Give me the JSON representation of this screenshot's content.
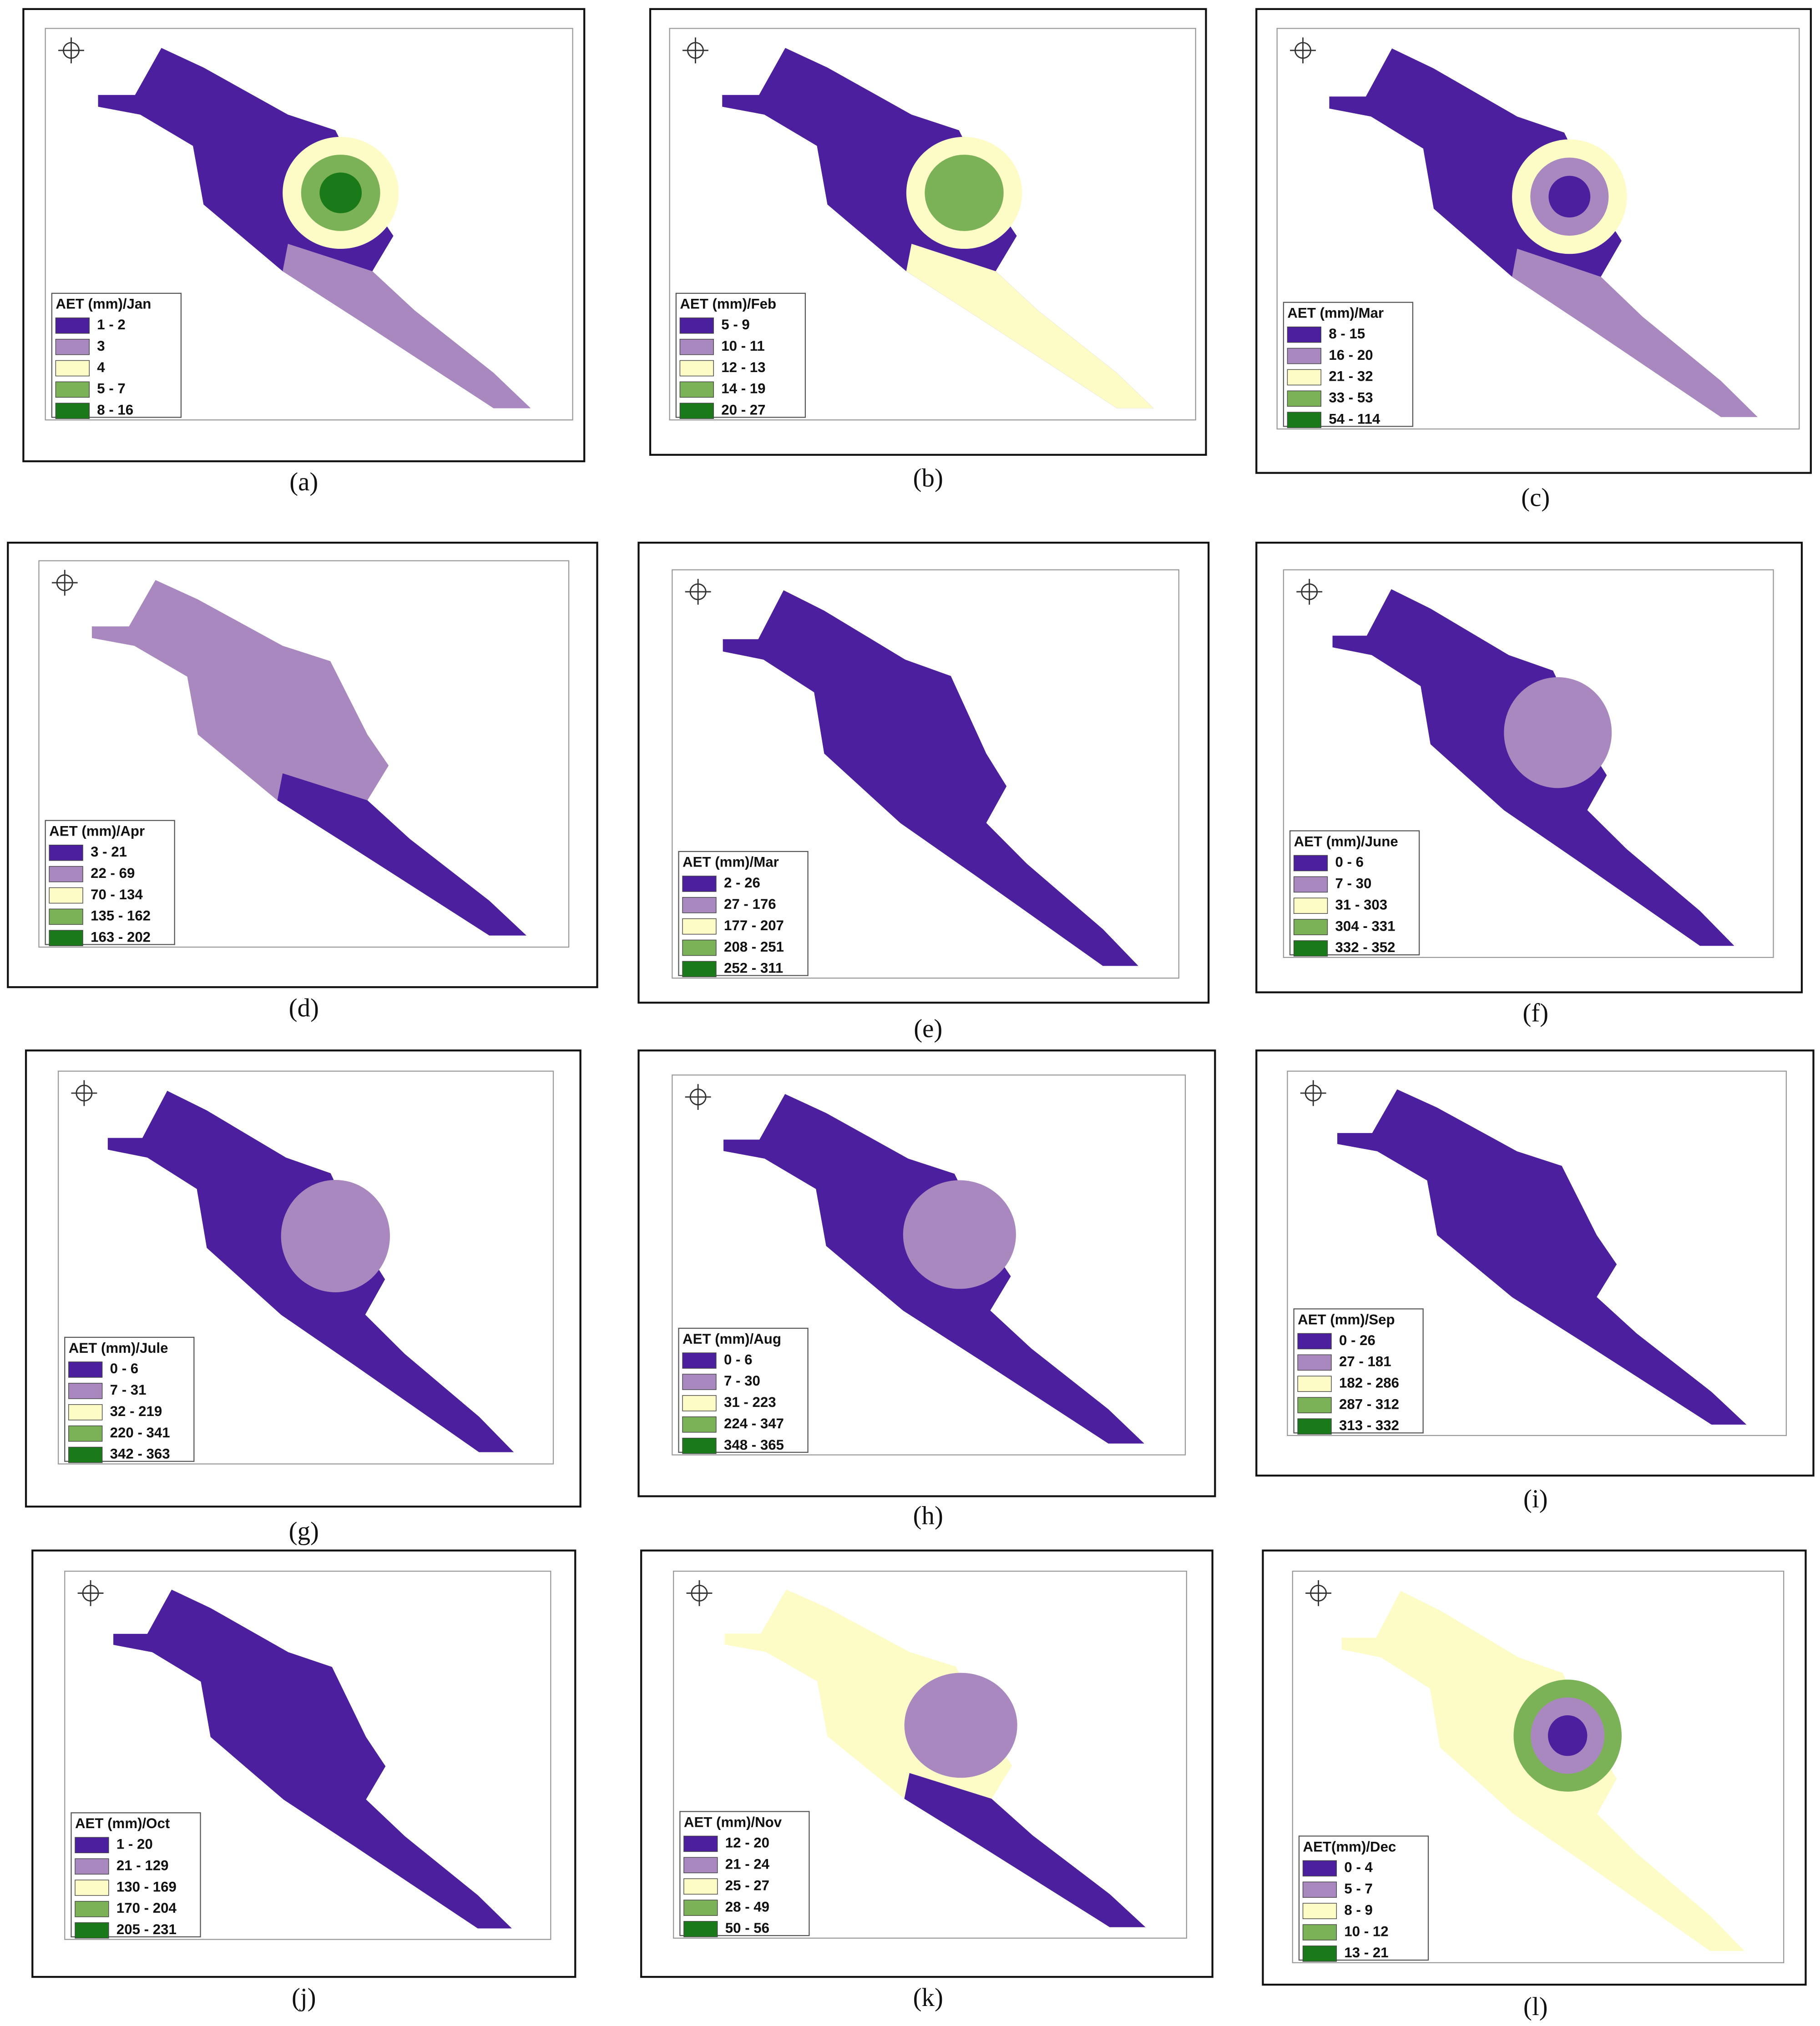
{
  "legend_colors": [
    "#4b1f9e",
    "#a888bf",
    "#fdfbc6",
    "#7cb257",
    "#1a7a1a"
  ],
  "panels": [
    {
      "label": "(a)",
      "legend_title": "AET (mm)/Jan",
      "legend_items": [
        "1 - 2",
        "3",
        "4",
        "5 - 7",
        "8 - 16"
      ]
    },
    {
      "label": "(b)",
      "legend_title": "AET (mm)/Feb",
      "legend_items": [
        "5 - 9",
        "10 - 11",
        "12 - 13",
        "14 - 19",
        "20 - 27"
      ]
    },
    {
      "label": "(c)",
      "legend_title": "AET (mm)/Mar",
      "legend_items": [
        "8 - 15",
        "16 - 20",
        "21 - 32",
        "33 - 53",
        "54 - 114"
      ]
    },
    {
      "label": "(d)",
      "legend_title": "AET (mm)/Apr",
      "legend_items": [
        "3 - 21",
        "22 - 69",
        "70 - 134",
        "135 - 162",
        "163 - 202"
      ]
    },
    {
      "label": "(e)",
      "legend_title": "AET (mm)/Mar",
      "legend_items": [
        "2 - 26",
        "27 - 176",
        "177 - 207",
        "208 - 251",
        "252 - 311"
      ]
    },
    {
      "label": "(f)",
      "legend_title": "AET (mm)/June",
      "legend_items": [
        "0 - 6",
        "7 - 30",
        "31 - 303",
        "304 - 331",
        "332 - 352"
      ]
    },
    {
      "label": "(g)",
      "legend_title": "AET (mm)/Jule",
      "legend_items": [
        "0 - 6",
        "7 - 31",
        "32 - 219",
        "220 - 341",
        "342 - 363"
      ]
    },
    {
      "label": "(h)",
      "legend_title": "AET (mm)/Aug",
      "legend_items": [
        "0 - 6",
        "7 - 30",
        "31 - 223",
        "224 - 347",
        "348 - 365"
      ]
    },
    {
      "label": "(i)",
      "legend_title": "AET (mm)/Sep",
      "legend_items": [
        "0 - 26",
        "27 - 181",
        "182 - 286",
        "287 - 312",
        "313 - 332"
      ]
    },
    {
      "label": "(j)",
      "legend_title": "AET (mm)/Oct",
      "legend_items": [
        "1 - 20",
        "21 - 129",
        "130 - 169",
        "170 - 204",
        "205 - 231"
      ]
    },
    {
      "label": "(k)",
      "legend_title": "AET (mm)/Nov",
      "legend_items": [
        "12 - 20",
        "21 - 24",
        "25 - 27",
        "28 - 49",
        "50 - 56"
      ]
    },
    {
      "label": "(l)",
      "legend_title": "AET(mm)/Dec",
      "legend_items": [
        "0 - 4",
        "5 - 7",
        "8 - 9",
        "10 - 12",
        "13 - 21"
      ]
    }
  ]
}
